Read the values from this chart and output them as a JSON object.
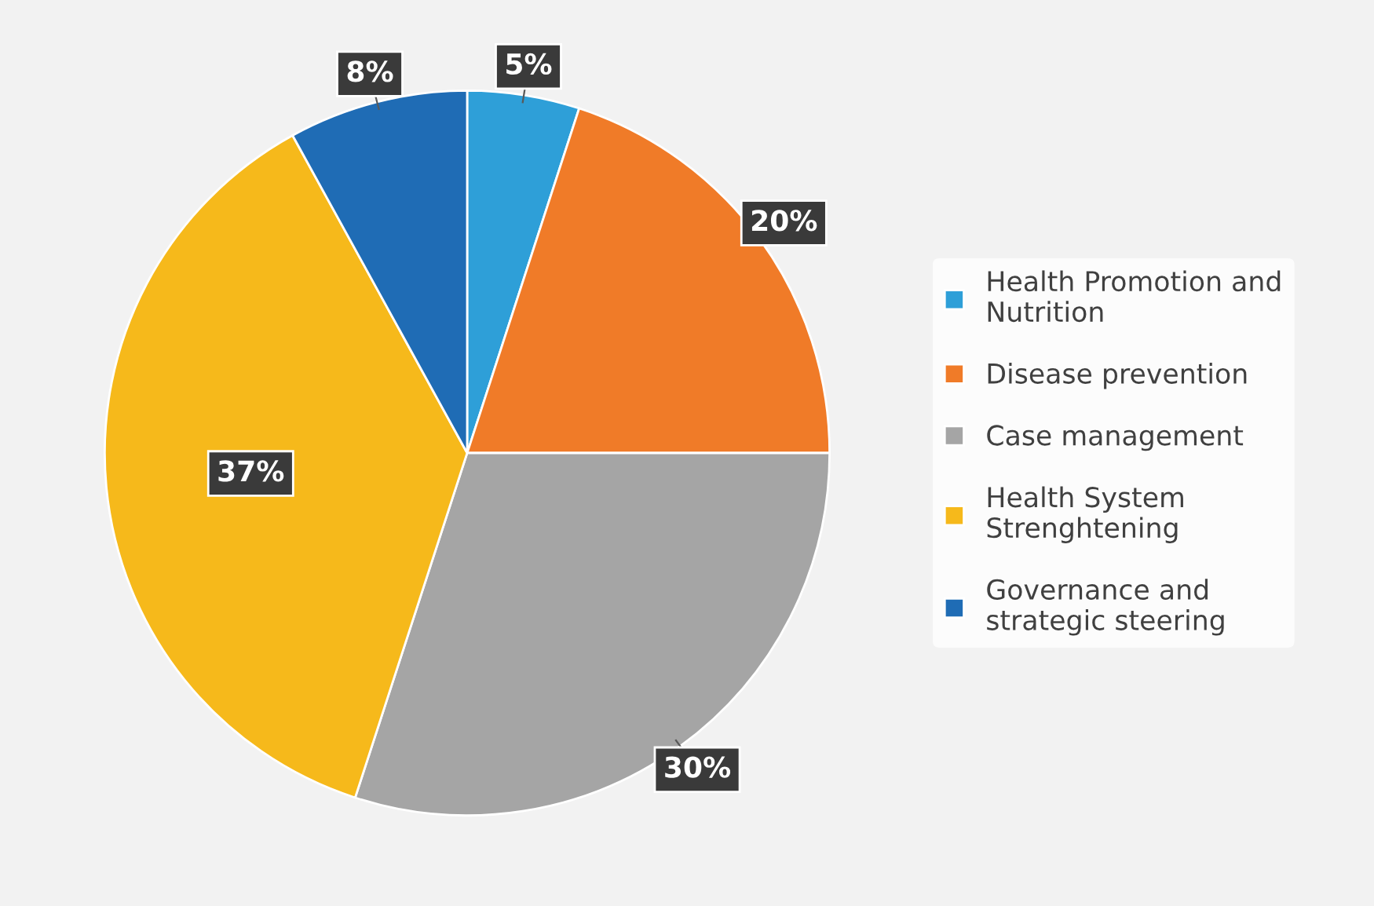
{
  "chart_data": {
    "type": "pie",
    "categories": [
      "Health Promotion and Nutrition",
      "Disease prevention",
      "Case management",
      "Health System Strenghtening",
      "Governance and strategic steering"
    ],
    "values": [
      5,
      20,
      30,
      37,
      8
    ],
    "colors": [
      "#2e9fd8",
      "#f07b28",
      "#a5a5a5",
      "#f6b91b",
      "#1f6cb5"
    ],
    "value_labels": [
      "5%",
      "20%",
      "30%",
      "37%",
      "8%"
    ],
    "legend": "right"
  }
}
